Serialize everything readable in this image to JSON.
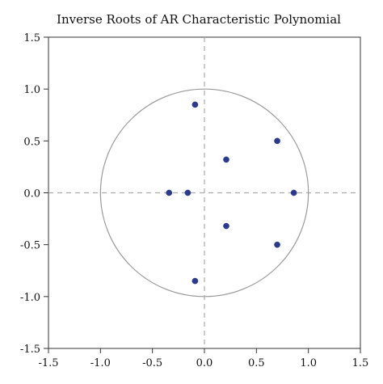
{
  "chart_data": {
    "type": "scatter",
    "title": "Inverse Roots of AR Characteristic Polynomial",
    "xlabel": "",
    "ylabel": "",
    "xlim": [
      -1.5,
      1.5
    ],
    "ylim": [
      -1.5,
      1.5
    ],
    "xticks": [
      "-1.5",
      "-1.0",
      "-0.5",
      "0.0",
      "0.5",
      "1.0",
      "1.5"
    ],
    "yticks": [
      "1.5",
      "1.0",
      "0.5",
      "0.0",
      "-0.5",
      "-1.0",
      "-1.5"
    ],
    "xtick_values": [
      -1.5,
      -1.0,
      -0.5,
      0.0,
      0.5,
      1.0,
      1.5
    ],
    "ytick_values": [
      1.5,
      1.0,
      0.5,
      0.0,
      -0.5,
      -1.0,
      -1.5
    ],
    "unit_circle_radius": 1.0,
    "reference_lines": {
      "x": 0.0,
      "y": 0.0,
      "style": "dashed"
    },
    "grid": false,
    "legend": "none",
    "colors": {
      "points": "#2b3a8f",
      "circle": "#999999",
      "reference_lines": "#aaaaaa",
      "frame": "#333333"
    },
    "points": [
      {
        "x": -0.09,
        "y": 0.85
      },
      {
        "x": 0.7,
        "y": 0.5
      },
      {
        "x": 0.21,
        "y": 0.32
      },
      {
        "x": -0.34,
        "y": 0.0
      },
      {
        "x": -0.16,
        "y": 0.0
      },
      {
        "x": 0.86,
        "y": 0.0
      },
      {
        "x": 0.21,
        "y": -0.32
      },
      {
        "x": 0.7,
        "y": -0.5
      },
      {
        "x": -0.09,
        "y": -0.85
      }
    ]
  }
}
